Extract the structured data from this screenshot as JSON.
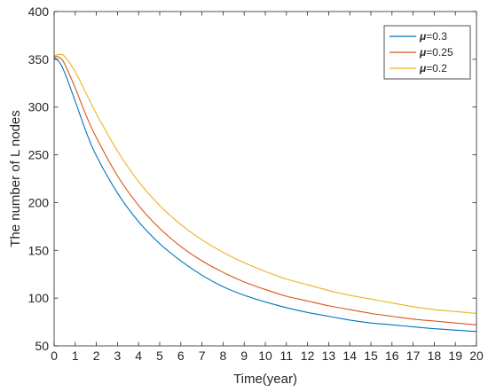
{
  "chart_data": {
    "type": "line",
    "title": "",
    "xlabel": "Time(year)",
    "ylabel": "The number of L nodes",
    "xlim": [
      0,
      20
    ],
    "ylim": [
      50,
      400
    ],
    "xticks": [
      0,
      1,
      2,
      3,
      4,
      5,
      6,
      7,
      8,
      9,
      10,
      11,
      12,
      13,
      14,
      15,
      16,
      17,
      18,
      19,
      20
    ],
    "yticks": [
      50,
      100,
      150,
      200,
      250,
      300,
      350,
      400
    ],
    "grid": false,
    "legend_position": "top-right",
    "x": [
      0,
      0.25,
      0.5,
      1,
      1.5,
      2,
      3,
      4,
      5,
      6,
      7,
      8,
      9,
      10,
      11,
      12,
      13,
      14,
      15,
      16,
      17,
      18,
      19,
      20
    ],
    "series": [
      {
        "name": "μ=0.3",
        "color": "#0072BD",
        "values": [
          352,
          347,
          336,
          306,
          275,
          249,
          210,
          180,
          157,
          139,
          124,
          112,
          103,
          96,
          90,
          85,
          81,
          77,
          74,
          72,
          70,
          68,
          66.5,
          65
        ]
      },
      {
        "name": "μ=0.25",
        "color": "#D95319",
        "values": [
          353,
          352,
          345,
          320,
          292,
          268,
          228,
          197,
          173,
          154,
          139,
          127,
          117,
          109,
          102,
          97,
          92,
          88,
          84,
          81,
          78,
          76,
          74,
          72
        ]
      },
      {
        "name": "μ=0.2",
        "color": "#EDB120",
        "values": [
          354,
          355,
          353,
          337,
          315,
          293,
          254,
          222,
          197,
          177,
          161,
          148,
          137,
          128,
          120,
          114,
          108,
          103,
          99,
          95,
          91,
          88,
          86,
          84
        ]
      }
    ]
  }
}
